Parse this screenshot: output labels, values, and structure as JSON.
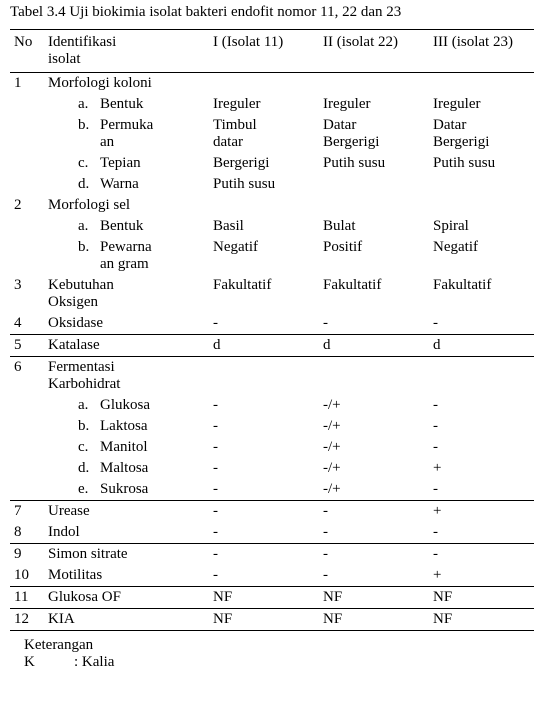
{
  "title": "Tabel 3.4 Uji biokimia isolat bakteri endofit nomor 11, 22 dan 23",
  "headers": {
    "no": "No",
    "ident_l1": "Identifikasi",
    "ident_l2": "isolat",
    "c1": "I (Isolat 11)",
    "c2": "II (isolat 22)",
    "c3": "III (isolat 23)"
  },
  "rows": {
    "r1_no": "1",
    "r1_label": "Morfologi koloni",
    "r1a_letter": "a.",
    "r1a_label": "Bentuk",
    "r1a_c1": "Ireguler",
    "r1a_c2": "Ireguler",
    "r1a_c3": "Ireguler",
    "r1b_letter": "b.",
    "r1b_label_l1": "Permuka",
    "r1b_label_l2": "an",
    "r1b_c1_l1": "Timbul",
    "r1b_c1_l2": "datar",
    "r1b_c2_l1": "Datar",
    "r1b_c2_l2": "Bergerigi",
    "r1b_c3_l1": "Datar",
    "r1b_c3_l2": "Bergerigi",
    "r1c_letter": "c.",
    "r1c_label": "Tepian",
    "r1c_c1": "Bergerigi",
    "r1c_c2": "Putih susu",
    "r1c_c3": "Putih susu",
    "r1d_letter": "d.",
    "r1d_label": "Warna",
    "r1d_c1": "Putih susu",
    "r1d_c2": "",
    "r1d_c3": "",
    "r2_no": "2",
    "r2_label": "Morfologi sel",
    "r2a_letter": "a.",
    "r2a_label": "Bentuk",
    "r2a_c1": "Basil",
    "r2a_c2": "Bulat",
    "r2a_c3": "Spiral",
    "r2b_letter": "b.",
    "r2b_label_l1": "Pewarna",
    "r2b_label_l2": "an gram",
    "r2b_c1": "Negatif",
    "r2b_c2": "Positif",
    "r2b_c3": "Negatif",
    "r3_no": "3",
    "r3_label_l1": "Kebutuhan",
    "r3_label_l2": "Oksigen",
    "r3_c1": "Fakultatif",
    "r3_c2": "Fakultatif",
    "r3_c3": "Fakultatif",
    "r4_no": "4",
    "r4_label": "Oksidase",
    "r4_c1": "-",
    "r4_c2": "-",
    "r4_c3": "-",
    "r5_no": "5",
    "r5_label": "Katalase",
    "r5_c1": "d",
    "r5_c2": "d",
    "r5_c3": "d",
    "r6_no": "6",
    "r6_label_l1": "Fermentasi",
    "r6_label_l2": "Karbohidrat",
    "r6a_letter": "a.",
    "r6a_label": "Glukosa",
    "r6a_c1": "-",
    "r6a_c2": "-/+",
    "r6a_c3": "-",
    "r6b_letter": "b.",
    "r6b_label": "Laktosa",
    "r6b_c1": "-",
    "r6b_c2": "-/+",
    "r6b_c3": "-",
    "r6c_letter": "c.",
    "r6c_label": "Manitol",
    "r6c_c1": "-",
    "r6c_c2": "-/+",
    "r6c_c3": "-",
    "r6d_letter": "d.",
    "r6d_label": "Maltosa",
    "r6d_c1": "-",
    "r6d_c2": "-/+",
    "r6d_c3": "+",
    "r6e_letter": "e.",
    "r6e_label": "Sukrosa",
    "r6e_c1": "-",
    "r6e_c2": "-/+",
    "r6e_c3": "-",
    "r7_no": "7",
    "r7_label": "Urease",
    "r7_c1": "-",
    "r7_c2": "-",
    "r7_c3": "+",
    "r8_no": "8",
    "r8_label": "Indol",
    "r8_c1": "-",
    "r8_c2": "-",
    "r8_c3": "-",
    "r9_no": "9",
    "r9_label": "Simon sitrate",
    "r9_c1": "-",
    "r9_c2": "-",
    "r9_c3": "-",
    "r10_no": "10",
    "r10_label": "Motilitas",
    "r10_c1": "-",
    "r10_c2": "-",
    "r10_c3": "+",
    "r11_no": "11",
    "r11_label": "Glukosa OF",
    "r11_c1": "NF",
    "r11_c2": "NF",
    "r11_c3": "NF",
    "r12_no": "12",
    "r12_label": "KIA",
    "r12_c1": "NF",
    "r12_c2": "NF",
    "r12_c3": "NF"
  },
  "footer": {
    "keterangan": "Keterangan",
    "k_label": "K",
    "k_sep": ":",
    "k_val": "Kalia"
  }
}
